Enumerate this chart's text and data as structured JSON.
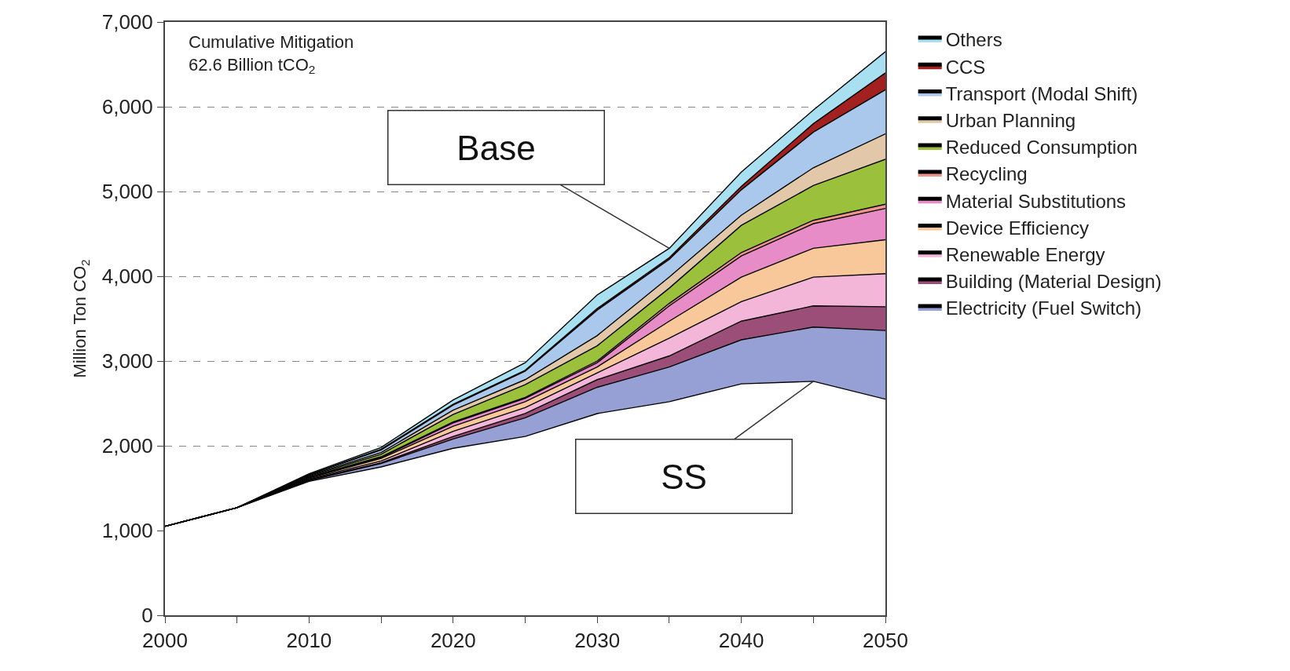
{
  "chart_data": {
    "type": "area",
    "stacked": true,
    "ylabel": "Million Ton CO$_{2}$",
    "x": [
      2000,
      2005,
      2010,
      2015,
      2020,
      2025,
      2030,
      2035,
      2040,
      2045,
      2050
    ],
    "xlim": [
      2000,
      2050
    ],
    "xticks": [
      2000,
      {
        "value": 2005,
        "label": null
      },
      2010,
      {
        "value": 2015,
        "label": null
      },
      2020,
      {
        "value": 2025,
        "label": null
      },
      2030,
      {
        "value": 2035,
        "label": null
      },
      2040,
      {
        "value": 2045,
        "label": null
      },
      2050
    ],
    "ylim": [
      0,
      7000
    ],
    "yticks": [
      {
        "value": 0,
        "label": "0"
      },
      {
        "value": 1000,
        "label": "1,000"
      },
      {
        "value": 2000,
        "label": "2,000"
      },
      {
        "value": 3000,
        "label": "3,000"
      },
      {
        "value": 4000,
        "label": "4,000"
      },
      {
        "value": 5000,
        "label": "5,000"
      },
      {
        "value": 6000,
        "label": "6,000"
      },
      {
        "value": 7000,
        "label": "7,000"
      }
    ],
    "grid": "y",
    "legend": "top right",
    "series": [
      {
        "color": "#ffffff",
        "values": [
          1050,
          1270,
          1580,
          1750,
          1970,
          2110,
          2380,
          2520,
          2730,
          2760,
          2550
        ]
      },
      {
        "name": "Electricity (Fuel Switch)",
        "color": "#97a0d4",
        "values": [
          0,
          0,
          10,
          40,
          110,
          220,
          310,
          410,
          520,
          640,
          810
        ]
      },
      {
        "name": "Building (Material Design)",
        "color": "#9b4f78",
        "values": [
          0,
          0,
          10,
          10,
          30,
          50,
          90,
          130,
          220,
          250,
          280
        ]
      },
      {
        "name": "Renewable Energy",
        "color": "#f4b6d8",
        "values": [
          0,
          0,
          10,
          20,
          60,
          70,
          80,
          210,
          230,
          340,
          390
        ]
      },
      {
        "name": "Device Efficiency",
        "color": "#f8c89a",
        "values": [
          0,
          0,
          10,
          30,
          60,
          70,
          70,
          200,
          290,
          340,
          400
        ]
      },
      {
        "name": "Material Substitutions",
        "color": "#e88cc8",
        "values": [
          0,
          0,
          10,
          10,
          40,
          40,
          50,
          180,
          250,
          290,
          370
        ]
      },
      {
        "name": "Recycling",
        "color": "#f0948a",
        "values": [
          0,
          0,
          0,
          10,
          10,
          10,
          20,
          30,
          40,
          40,
          50
        ]
      },
      {
        "name": "Reduced Consumption",
        "color": "#9bc13c",
        "values": [
          0,
          0,
          10,
          30,
          90,
          150,
          180,
          180,
          320,
          410,
          530
        ]
      },
      {
        "name": "Urban Planning",
        "color": "#e2c8a8",
        "values": [
          0,
          0,
          10,
          20,
          50,
          60,
          120,
          130,
          120,
          210,
          300
        ]
      },
      {
        "name": "Transport (Modal Shift)",
        "color": "#a9c8ec",
        "values": [
          0,
          0,
          10,
          30,
          60,
          100,
          300,
          210,
          300,
          420,
          520
        ]
      },
      {
        "name": "CCS",
        "color": "#a32020",
        "values": [
          0,
          0,
          0,
          10,
          10,
          10,
          20,
          20,
          40,
          100,
          200
        ]
      },
      {
        "name": "Others",
        "color": "#a8e0f2",
        "values": [
          0,
          0,
          10,
          20,
          50,
          90,
          160,
          110,
          170,
          160,
          250
        ]
      }
    ],
    "annotations": [
      "Cumulative Mitigation\n62.6 Billion tCO$_{2}$",
      {
        "text": "Base",
        "x": 2035,
        "y": 4330
      },
      {
        "text": "SS",
        "x": 2045,
        "y": 2760
      }
    ]
  }
}
